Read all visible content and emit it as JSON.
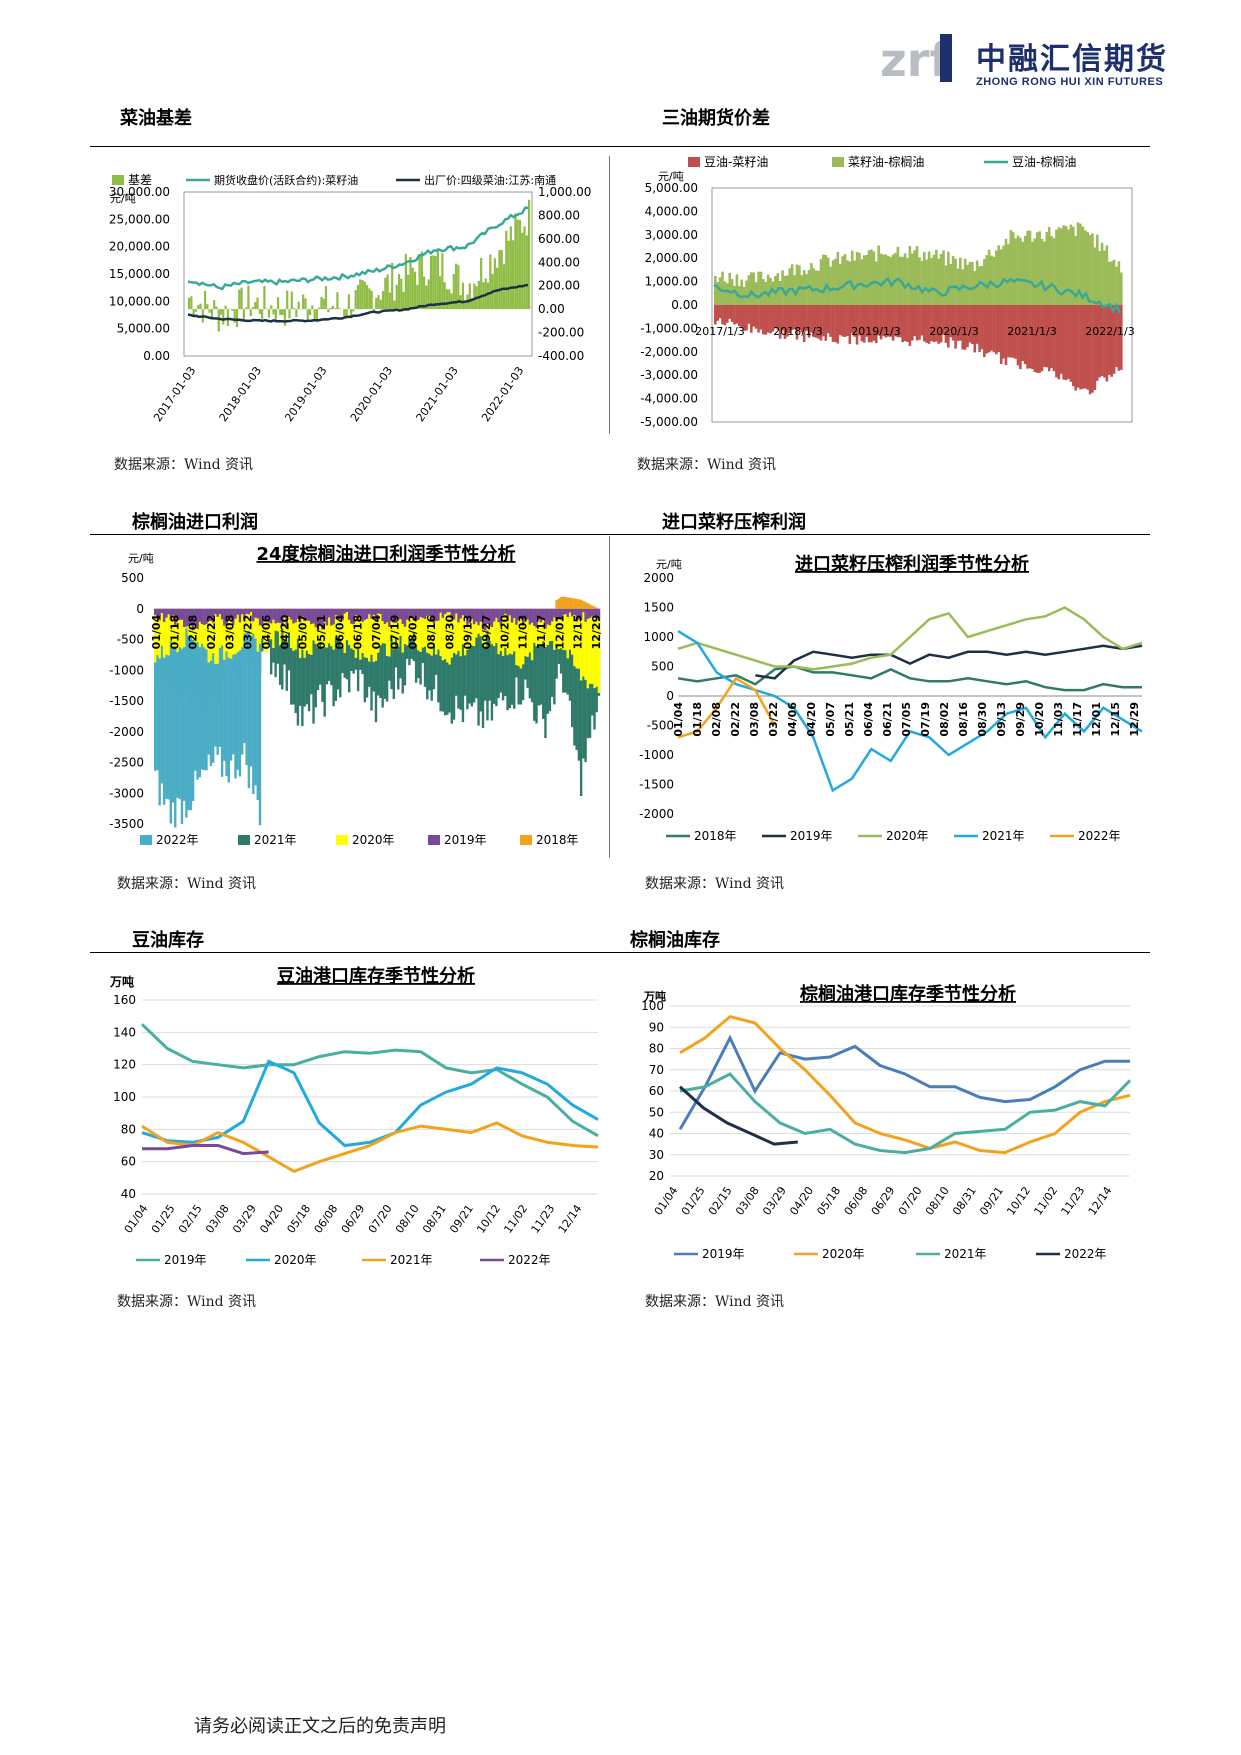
{
  "header": {
    "logo_mark": "zrf",
    "logo_cn": "中融汇信期货",
    "logo_en": "ZHONG RONG HUI XIN FUTURES"
  },
  "sections": {
    "s1": "菜油基差",
    "s2": "三油期货价差",
    "s3": "棕榈油进口利润",
    "s4": "进口菜籽压榨利润",
    "s5": "豆油库存",
    "s6": "棕榈油库存"
  },
  "sources": {
    "src1": "数据来源：Wind 资讯",
    "src2": "数据来源：Wind 资讯",
    "src3": "数据来源：Wind 资讯",
    "src4": "数据来源：Wind 资讯",
    "src5": "数据来源：Wind 资讯",
    "src6": "数据来源：Wind 资讯"
  },
  "footer": "请务必阅读正文之后的免责声明",
  "colors": {
    "green_bar": "#8fbc45",
    "teal_line": "#3aa896",
    "navy_line": "#1f2f45",
    "red_bar": "#c0504d",
    "cyan": "#22a9e0",
    "orange": "#f3a21b",
    "purple": "#7a4a9a",
    "blue": "#4a7ebb",
    "olive_green": "#9bbb59",
    "dark_teal": "#2f7a6b",
    "yellow": "#ffff00",
    "steel_blue": "#4bacc6",
    "mid_teal": "#4aaea0"
  },
  "chart_data": [
    {
      "id": "rapeseed_basis",
      "type": "area",
      "ylabel": "元/吨",
      "legend": [
        "基差",
        "期货收盘价(活跃合约):菜籽油",
        "出厂价:四级菜油:江苏:南通"
      ],
      "ylim_left": [
        0,
        30000
      ],
      "ylim_right": [
        -400,
        1000
      ],
      "y_ticks_left": [
        "30,000.00",
        "25,000.00",
        "20,000.00",
        "15,000.00",
        "10,000.00",
        "5,000.00",
        "0.00"
      ],
      "y_ticks_right": [
        "1,000.00",
        "800.00",
        "600.00",
        "400.00",
        "200.00",
        "0.00",
        "-200.00",
        "-400.00"
      ],
      "x_ticks": [
        "2017-01-03",
        "2018-01-03",
        "2019-01-03",
        "2020-01-03",
        "2021-01-03",
        "2022-01-03"
      ],
      "x": [
        2017.0,
        2017.5,
        2018.0,
        2018.5,
        2019.0,
        2019.5,
        2020.0,
        2020.5,
        2021.0,
        2021.5,
        2022.0,
        2022.3
      ],
      "series": [
        {
          "name": "期货收盘价(活跃合约):菜籽油",
          "axis": "left",
          "values": [
            14000,
            12500,
            13500,
            13500,
            14000,
            14500,
            15500,
            17000,
            19500,
            20000,
            24000,
            27000
          ]
        },
        {
          "name": "出厂价:四级菜油:江苏:南通",
          "axis": "left",
          "values": [
            7500,
            6800,
            6500,
            6400,
            6500,
            7000,
            8000,
            8500,
            9500,
            10000,
            12000,
            13000
          ]
        },
        {
          "name": "基差",
          "axis": "right",
          "values": [
            100,
            -50,
            50,
            0,
            50,
            20,
            150,
            300,
            400,
            200,
            500,
            800
          ]
        }
      ]
    },
    {
      "id": "three_oils_spread",
      "type": "area",
      "ylabel": "元/吨",
      "legend": [
        "豆油-菜籽油",
        "菜籽油-棕榈油",
        "豆油-棕榈油"
      ],
      "ylim": [
        -5000,
        5000
      ],
      "y_ticks": [
        "5,000.00",
        "4,000.00",
        "3,000.00",
        "2,000.00",
        "1,000.00",
        "0.00",
        "-1,000.00",
        "-2,000.00",
        "-3,000.00",
        "-4,000.00",
        "-5,000.00"
      ],
      "x_ticks": [
        "2017/1/3",
        "2018/1/3",
        "2019/1/3",
        "2020/1/3",
        "2021/1/3",
        "2022/1/3"
      ],
      "x": [
        2017.0,
        2017.5,
        2018.0,
        2018.5,
        2019.0,
        2019.5,
        2020.0,
        2020.5,
        2021.0,
        2021.5,
        2022.0,
        2022.3
      ],
      "series": [
        {
          "name": "豆油-菜籽油",
          "values": [
            -400,
            -800,
            -1000,
            -1200,
            -1200,
            -1300,
            -1200,
            -1600,
            -2200,
            -2500,
            -3500,
            -2500
          ]
        },
        {
          "name": "菜籽油-棕榈油",
          "values": [
            1200,
            1000,
            1400,
            1800,
            2000,
            2300,
            2000,
            1600,
            2800,
            3000,
            3200,
            1500
          ]
        },
        {
          "name": "豆油-棕榈油",
          "values": [
            800,
            400,
            600,
            700,
            900,
            1000,
            500,
            800,
            1000,
            800,
            400,
            -200
          ]
        }
      ]
    },
    {
      "id": "palm_import_profit",
      "type": "area",
      "title": "24度棕榈油进口利润季节性分析",
      "ylabel": "元/吨",
      "ylim": [
        -3500,
        500
      ],
      "y_ticks": [
        "500",
        "0",
        "-500",
        "-1000",
        "-1500",
        "-2000",
        "-2500",
        "-3000",
        "-3500"
      ],
      "x_ticks": [
        "01/04",
        "01/18",
        "02/08",
        "02/22",
        "03/08",
        "03/22",
        "04/06",
        "04/20",
        "05/07",
        "05/21",
        "06/04",
        "06/18",
        "07/04",
        "07/19",
        "08/02",
        "08/16",
        "08/30",
        "09/13",
        "09/27",
        "10/20",
        "11/03",
        "11/17",
        "12/01",
        "12/15",
        "12/29"
      ],
      "legend": [
        "2022年",
        "2021年",
        "2020年",
        "2019年",
        "2018年"
      ],
      "series": [
        {
          "name": "2022年",
          "values": [
            -2800,
            -3300,
            -3200,
            -2800,
            -2500,
            -2600,
            -2400,
            -3300
          ]
        },
        {
          "name": "2021年",
          "values": [
            -1400,
            -1500,
            -1300,
            -1600,
            -1200,
            -900,
            -700,
            -1100,
            -1800,
            -1500,
            -1300,
            -1100,
            -1700,
            -1200,
            -900,
            -1300,
            -1600,
            -1700,
            -1800,
            -1400,
            -1300,
            -1900,
            -1000,
            -2800,
            -1500
          ]
        },
        {
          "name": "2020年",
          "values": [
            -800,
            -600,
            -400,
            -800,
            -700,
            -500,
            -600,
            -400,
            -700,
            -600,
            -500,
            -800,
            -700,
            -600,
            -500,
            -700,
            -800,
            -600,
            -500,
            -700,
            -900,
            -500,
            -600,
            -1100,
            -1300
          ]
        },
        {
          "name": "2019年",
          "values": [
            -100,
            -200,
            -300,
            -150,
            -200,
            -100,
            -250,
            -200,
            -150,
            -300,
            -100,
            -200,
            -150,
            -250,
            -200,
            -150,
            -100,
            -200,
            -300,
            -150,
            -200,
            -250,
            -150,
            -100,
            -200
          ]
        },
        {
          "name": "2018年",
          "values": [
            0,
            0,
            0,
            0,
            0,
            0,
            0,
            0,
            0,
            0,
            0,
            0,
            0,
            0,
            0,
            0,
            0,
            0,
            0,
            0,
            0,
            0,
            200,
            150,
            0
          ]
        }
      ]
    },
    {
      "id": "rapeseed_crush_profit",
      "type": "line",
      "title": "进口菜籽压榨利润季节性分析",
      "ylabel": "元/吨",
      "ylim": [
        -2000,
        2000
      ],
      "y_ticks": [
        "2000",
        "1500",
        "1000",
        "500",
        "0",
        "-500",
        "-1000",
        "-1500",
        "-2000"
      ],
      "x_ticks": [
        "01/04",
        "01/18",
        "02/08",
        "02/22",
        "03/08",
        "03/22",
        "04/06",
        "04/20",
        "05/07",
        "05/21",
        "06/04",
        "06/21",
        "07/05",
        "07/19",
        "08/02",
        "08/16",
        "08/30",
        "09/13",
        "09/29",
        "10/20",
        "11/03",
        "11/17",
        "12/01",
        "12/15",
        "12/29"
      ],
      "legend": [
        "2018年",
        "2019年",
        "2020年",
        "2021年",
        "2022年"
      ],
      "series": [
        {
          "name": "2018年",
          "values": [
            300,
            250,
            300,
            350,
            200,
            450,
            500,
            400,
            400,
            350,
            300,
            450,
            300,
            250,
            250,
            300,
            250,
            200,
            250,
            150,
            100,
            100,
            200,
            150,
            150
          ]
        },
        {
          "name": "2019年",
          "values": [
            null,
            null,
            null,
            null,
            350,
            300,
            600,
            750,
            700,
            650,
            700,
            700,
            550,
            700,
            650,
            750,
            750,
            700,
            750,
            700,
            750,
            800,
            850,
            800,
            850
          ]
        },
        {
          "name": "2020年",
          "values": [
            800,
            900,
            800,
            700,
            600,
            500,
            500,
            450,
            500,
            550,
            650,
            700,
            1000,
            1300,
            1400,
            1000,
            1100,
            1200,
            1300,
            1350,
            1500,
            1300,
            1000,
            800,
            900
          ]
        },
        {
          "name": "2021年",
          "values": [
            1100,
            900,
            400,
            200,
            100,
            0,
            -200,
            -700,
            -1600,
            -1400,
            -900,
            -1100,
            -600,
            -700,
            -1000,
            -800,
            -600,
            -300,
            -200,
            -700,
            -300,
            -600,
            -200,
            -400,
            -600
          ]
        },
        {
          "name": "2022年",
          "values": [
            -700,
            -600,
            -200,
            300,
            100,
            -500
          ]
        }
      ]
    },
    {
      "id": "soyoil_port_stock",
      "type": "line",
      "title": "豆油港口库存季节性分析",
      "ylabel": "万吨",
      "ylim": [
        40,
        160
      ],
      "y_ticks": [
        "160",
        "140",
        "120",
        "100",
        "80",
        "60",
        "40"
      ],
      "x_ticks": [
        "01/04",
        "01/25",
        "02/15",
        "03/08",
        "03/29",
        "04/20",
        "05/18",
        "06/08",
        "06/29",
        "07/20",
        "08/10",
        "08/31",
        "09/21",
        "10/12",
        "11/02",
        "11/23",
        "12/14"
      ],
      "legend": [
        "2019年",
        "2020年",
        "2021年",
        "2022年"
      ],
      "series": [
        {
          "name": "2019年",
          "values": [
            145,
            130,
            122,
            120,
            118,
            120,
            120,
            125,
            128,
            127,
            129,
            128,
            118,
            115,
            117,
            108,
            100,
            85,
            76
          ]
        },
        {
          "name": "2020年",
          "values": [
            78,
            73,
            72,
            75,
            85,
            122,
            115,
            84,
            70,
            72,
            78,
            95,
            103,
            108,
            118,
            115,
            108,
            95,
            86
          ]
        },
        {
          "name": "2021年",
          "values": [
            82,
            72,
            70,
            78,
            72,
            63,
            54,
            60,
            65,
            70,
            78,
            82,
            80,
            78,
            84,
            76,
            72,
            70,
            69
          ]
        },
        {
          "name": "2022年",
          "values": [
            68,
            68,
            70,
            70,
            65,
            66
          ]
        }
      ]
    },
    {
      "id": "palm_port_stock",
      "type": "line",
      "title": "棕榈油港口库存季节性分析",
      "ylabel": "万吨",
      "ylim": [
        20,
        100
      ],
      "y_ticks": [
        "100",
        "90",
        "80",
        "70",
        "60",
        "50",
        "40",
        "30",
        "20"
      ],
      "x_ticks": [
        "01/04",
        "01/25",
        "02/15",
        "03/08",
        "03/29",
        "04/20",
        "05/18",
        "06/08",
        "06/29",
        "07/20",
        "08/10",
        "08/31",
        "09/21",
        "10/12",
        "11/02",
        "11/23",
        "12/14"
      ],
      "legend": [
        "2019年",
        "2020年",
        "2021年",
        "2022年"
      ],
      "series": [
        {
          "name": "2019年",
          "values": [
            42,
            62,
            85,
            60,
            78,
            75,
            76,
            81,
            72,
            68,
            62,
            62,
            57,
            55,
            56,
            62,
            70,
            74,
            74
          ]
        },
        {
          "name": "2020年",
          "values": [
            78,
            85,
            95,
            92,
            80,
            70,
            58,
            45,
            40,
            37,
            33,
            36,
            32,
            31,
            36,
            40,
            50,
            55,
            58
          ]
        },
        {
          "name": "2021年",
          "values": [
            60,
            62,
            68,
            55,
            45,
            40,
            42,
            35,
            32,
            31,
            33,
            40,
            41,
            42,
            50,
            51,
            55,
            53,
            65
          ]
        },
        {
          "name": "2022年",
          "values": [
            62,
            52,
            45,
            40,
            35,
            36
          ]
        }
      ]
    }
  ]
}
